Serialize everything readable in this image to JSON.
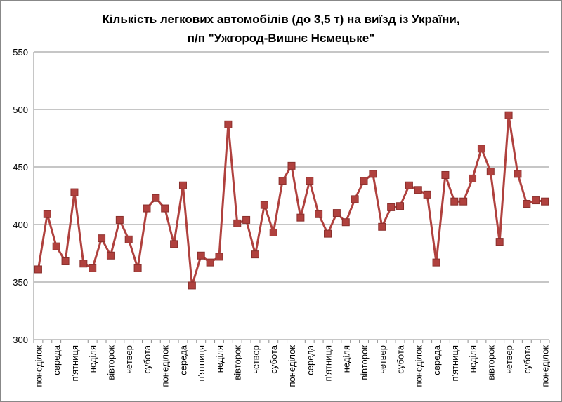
{
  "chart_data": {
    "type": "line",
    "title": [
      "Кількість легкових автомобілів (до 3,5 т) на виїзд із України,",
      "п/п \"Ужгород-Вишнє Нємецьке\""
    ],
    "categories": [
      "понеділок",
      null,
      "середа",
      null,
      "п'ятниця",
      null,
      "неділя",
      null,
      "вівторок",
      null,
      "четвер",
      null,
      "субота",
      null,
      "понеділок",
      null,
      "середа",
      null,
      "п'ятниця",
      null,
      "неділя",
      null,
      "вівторок",
      null,
      "четвер",
      null,
      "субота",
      null,
      "понеділок",
      null,
      "середа",
      null,
      "п'ятниця",
      null,
      "неділя",
      null,
      "вівторок",
      null,
      "четвер",
      null,
      "субота",
      null,
      "понеділок",
      null,
      "середа",
      null,
      "п'ятниця",
      null,
      "неділя",
      null,
      "вівторок",
      null,
      "четвер",
      null,
      "субота",
      null,
      "понеділок"
    ],
    "values": [
      361,
      409,
      381,
      368,
      428,
      366,
      362,
      388,
      373,
      404,
      387,
      362,
      414,
      423,
      414,
      383,
      434,
      347,
      373,
      367,
      372,
      487,
      401,
      404,
      374,
      417,
      393,
      438,
      451,
      406,
      438,
      409,
      392,
      410,
      402,
      422,
      438,
      444,
      398,
      415,
      416,
      434,
      430,
      426,
      367,
      443,
      420,
      420,
      440,
      466,
      446,
      385,
      495,
      444,
      418,
      421,
      420
    ],
    "color": "#b0413e",
    "ylim": [
      300,
      550
    ],
    "yticks": [
      300,
      350,
      400,
      450,
      500,
      550
    ],
    "grid": true
  }
}
